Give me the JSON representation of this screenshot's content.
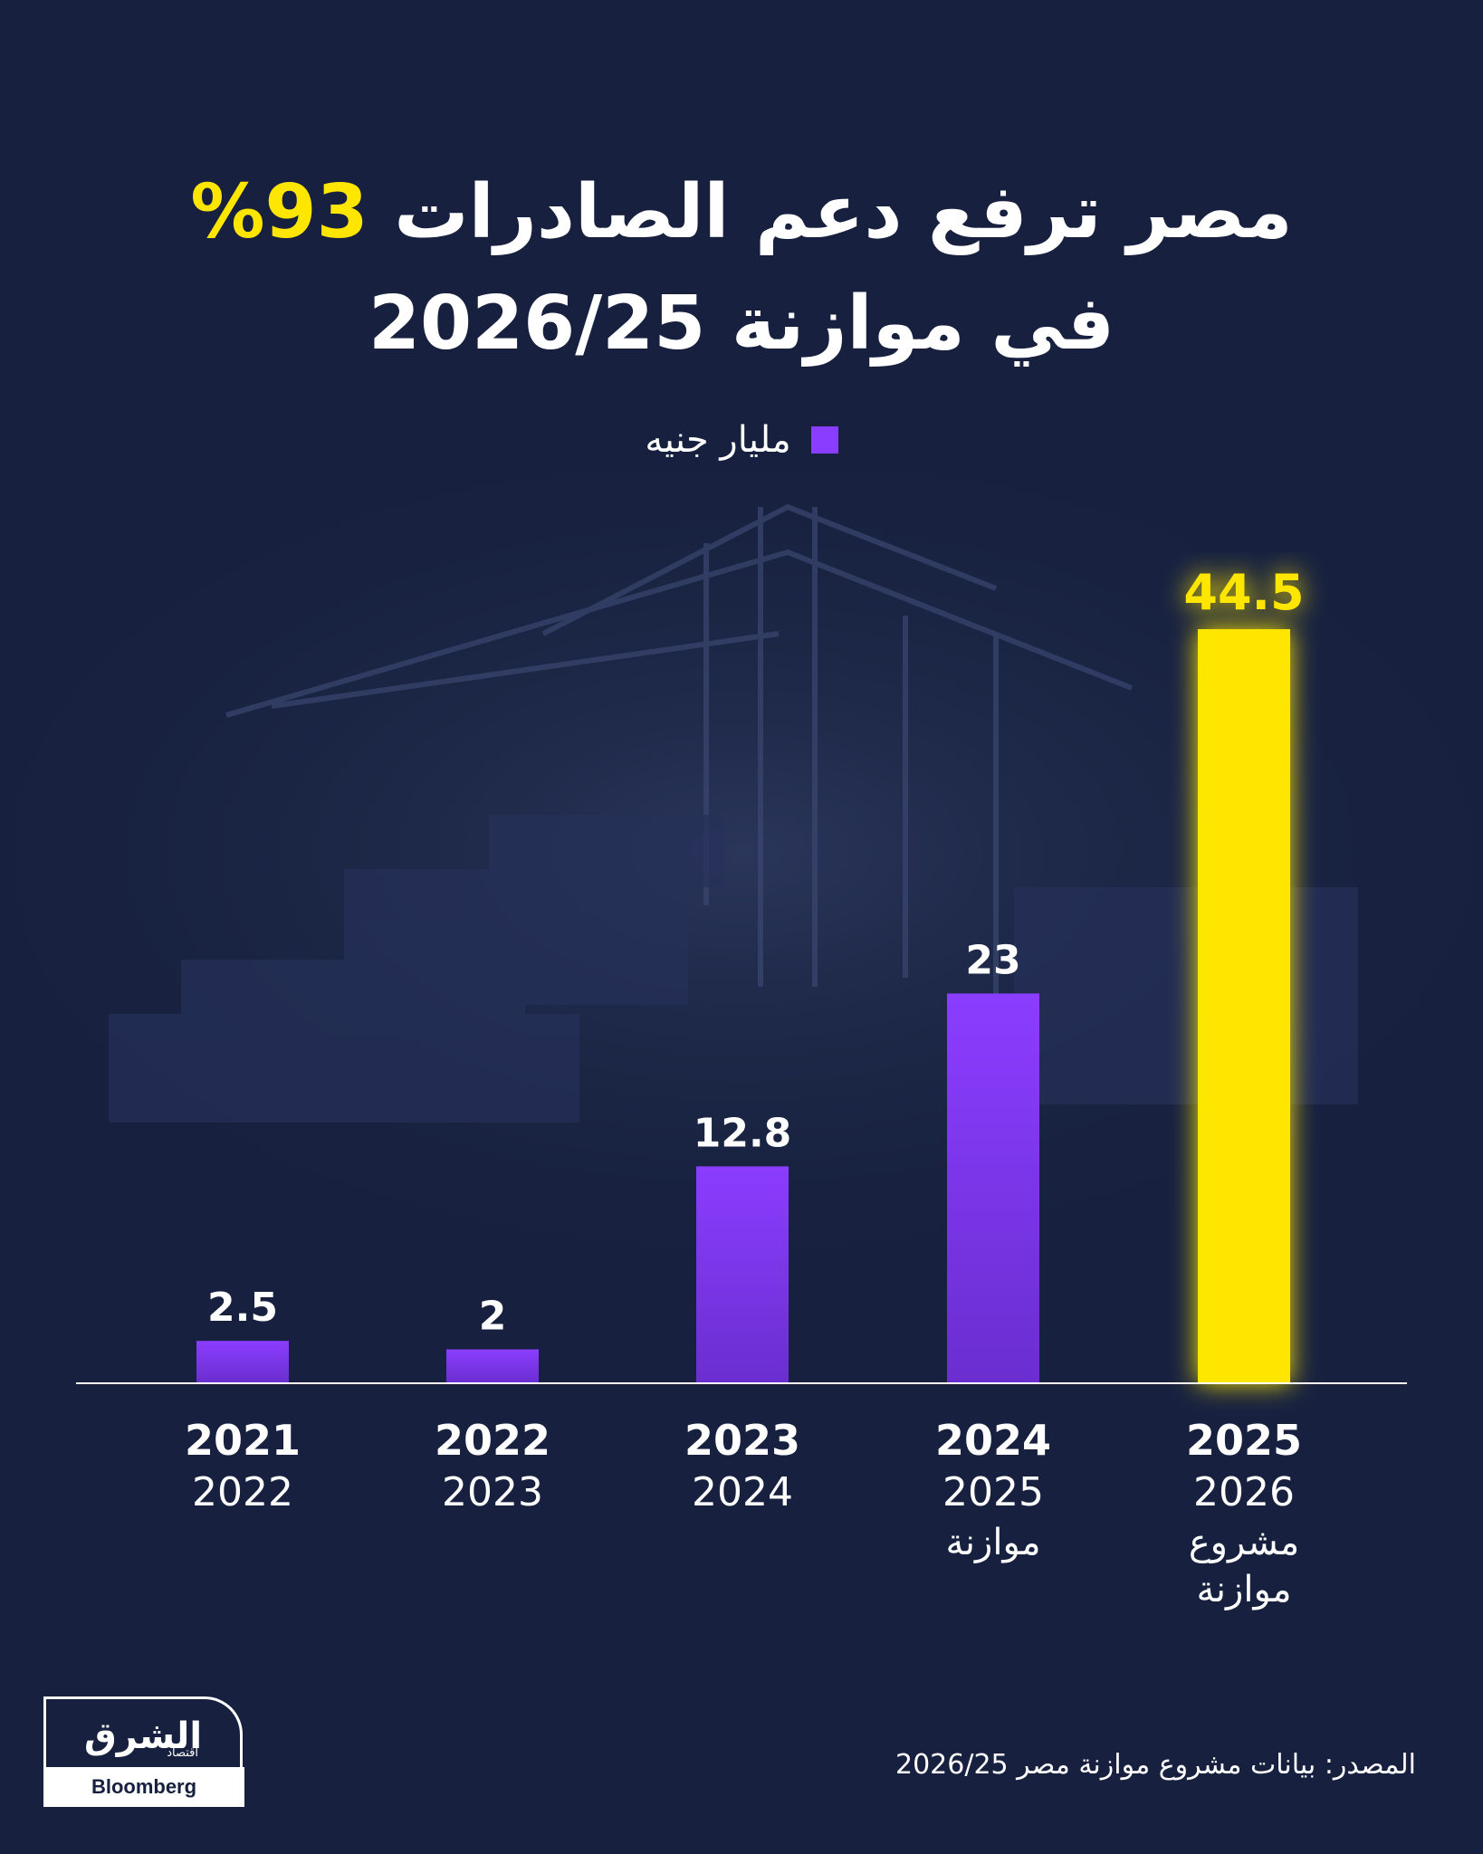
{
  "title": {
    "line1_text": "مصر ترفع دعم الصادرات",
    "line1_highlight": "93%",
    "line2": "في موازنة 2026/25"
  },
  "legend": {
    "label": "مليار جنيه"
  },
  "colors": {
    "background": "#17213f",
    "bar": "#8b3dff",
    "highlight": "#ffe600",
    "text": "#ffffff"
  },
  "chart_data": {
    "type": "bar",
    "title": "مصر ترفع دعم الصادرات 93% في موازنة 2026/25",
    "unit": "مليار جنيه",
    "categories": [
      {
        "line1": "2021",
        "line2": "2022",
        "note": ""
      },
      {
        "line1": "2022",
        "line2": "2023",
        "note": ""
      },
      {
        "line1": "2023",
        "line2": "2024",
        "note": ""
      },
      {
        "line1": "2024",
        "line2": "2025",
        "note": "موازنة"
      },
      {
        "line1": "2025",
        "line2": "2026",
        "note": "مشروع موازنة"
      }
    ],
    "values": [
      2.5,
      2,
      12.8,
      23,
      44.5
    ],
    "value_labels": [
      "2.5",
      "2",
      "12.8",
      "23",
      "44.5"
    ],
    "highlight_index": 4,
    "ylim": [
      0,
      44.5
    ],
    "grid": false
  },
  "source": "المصدر: بيانات مشروع موازنة مصر 2026/25",
  "logo": {
    "arabic": "الشرق",
    "arabic_sub": "اقتصاد",
    "english": "Bloomberg"
  }
}
